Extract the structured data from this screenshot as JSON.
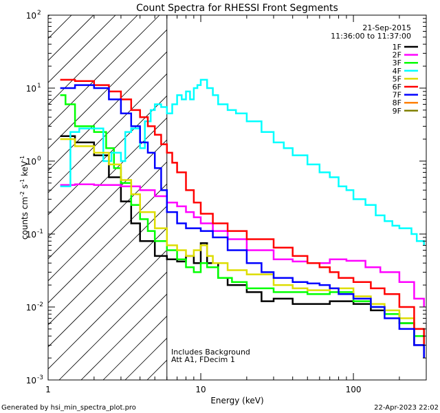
{
  "chart_data": {
    "type": "line",
    "title": "Count Spectra for RHESSI Front Segments",
    "xlabel": "Energy (keV)",
    "ylabel": "counts cm",
    "ylabel_sup1": "-2",
    "ylabel_mid": " s",
    "ylabel_sup2": "-1",
    "ylabel_mid2": " keV",
    "ylabel_sup3": "-1",
    "x_scale": "log",
    "y_scale": "log",
    "xlim": [
      1,
      300
    ],
    "ylim": [
      0.001,
      100
    ],
    "x_major_ticks": [
      1,
      10,
      100
    ],
    "x_tick_labels": [
      "1",
      "10",
      "100"
    ],
    "y_major_ticks": [
      0.001,
      0.01,
      0.1,
      1,
      10,
      100
    ],
    "y_tick_bases": [
      "10",
      "10",
      "10",
      "10",
      "10",
      "10"
    ],
    "y_tick_exps": [
      "-3",
      "-2",
      "-1",
      "0",
      "1",
      "2"
    ],
    "shaded_region_xmax": 6,
    "date": "21-Sep-2015",
    "time_range": "11:36:00 to 11:37:00",
    "notes": [
      "Includes Background",
      "Att A1, FDecim 1"
    ],
    "footer_left": "Generated by hsi_min_spectra_plot.pro",
    "footer_right": "22-Apr-2023 22:02",
    "series": [
      {
        "name": "1F",
        "color": "#000000",
        "visible": true,
        "points": [
          [
            1.2,
            2.2
          ],
          [
            1.5,
            1.8
          ],
          [
            2,
            1.2
          ],
          [
            2.5,
            0.6
          ],
          [
            3,
            0.28
          ],
          [
            3.5,
            0.14
          ],
          [
            4,
            0.08
          ],
          [
            5,
            0.05
          ],
          [
            6,
            0.045
          ],
          [
            7,
            0.042
          ],
          [
            8,
            0.05
          ],
          [
            9,
            0.04
          ],
          [
            10,
            0.075
          ],
          [
            11,
            0.04
          ],
          [
            13,
            0.025
          ],
          [
            15,
            0.02
          ],
          [
            20,
            0.016
          ],
          [
            25,
            0.012
          ],
          [
            30,
            0.013
          ],
          [
            40,
            0.011
          ],
          [
            50,
            0.011
          ],
          [
            70,
            0.012
          ],
          [
            100,
            0.011
          ],
          [
            130,
            0.009
          ],
          [
            160,
            0.008
          ],
          [
            200,
            0.006
          ],
          [
            250,
            0.003
          ],
          [
            290,
            0.002
          ]
        ]
      },
      {
        "name": "2F",
        "color": "#ff00ff",
        "visible": true,
        "points": [
          [
            1.2,
            0.47
          ],
          [
            1.5,
            0.48
          ],
          [
            2,
            0.47
          ],
          [
            3,
            0.45
          ],
          [
            4,
            0.4
          ],
          [
            5,
            0.33
          ],
          [
            6,
            0.27
          ],
          [
            7,
            0.24
          ],
          [
            8,
            0.2
          ],
          [
            9,
            0.17
          ],
          [
            10,
            0.14
          ],
          [
            12,
            0.11
          ],
          [
            15,
            0.085
          ],
          [
            20,
            0.06
          ],
          [
            30,
            0.045
          ],
          [
            40,
            0.042
          ],
          [
            50,
            0.04
          ],
          [
            70,
            0.045
          ],
          [
            90,
            0.043
          ],
          [
            120,
            0.035
          ],
          [
            150,
            0.03
          ],
          [
            200,
            0.022
          ],
          [
            250,
            0.013
          ],
          [
            290,
            0.01
          ]
        ]
      },
      {
        "name": "3F",
        "color": "#00ff00",
        "visible": true,
        "points": [
          [
            1.2,
            8
          ],
          [
            1.3,
            6
          ],
          [
            1.5,
            3
          ],
          [
            2,
            2.5
          ],
          [
            2.4,
            1.5
          ],
          [
            2.7,
            0.8
          ],
          [
            3,
            0.5
          ],
          [
            3.5,
            0.25
          ],
          [
            4,
            0.16
          ],
          [
            4.5,
            0.11
          ],
          [
            5,
            0.08
          ],
          [
            6,
            0.06
          ],
          [
            7,
            0.045
          ],
          [
            8,
            0.035
          ],
          [
            9,
            0.03
          ],
          [
            10,
            0.04
          ],
          [
            11,
            0.035
          ],
          [
            13,
            0.025
          ],
          [
            16,
            0.022
          ],
          [
            20,
            0.018
          ],
          [
            30,
            0.016
          ],
          [
            40,
            0.016
          ],
          [
            50,
            0.015
          ],
          [
            70,
            0.016
          ],
          [
            100,
            0.012
          ],
          [
            130,
            0.01
          ],
          [
            160,
            0.008
          ],
          [
            200,
            0.006
          ],
          [
            250,
            0.004
          ],
          [
            290,
            0.003
          ]
        ]
      },
      {
        "name": "4F",
        "color": "#00ffff",
        "visible": true,
        "points": [
          [
            1.2,
            0.45
          ],
          [
            1.4,
            2.5
          ],
          [
            1.6,
            2.8
          ],
          [
            2,
            2.8
          ],
          [
            2.3,
            1
          ],
          [
            2.6,
            1.3
          ],
          [
            3,
            1
          ],
          [
            3.2,
            2.5
          ],
          [
            3.5,
            2.8
          ],
          [
            4,
            1.5
          ],
          [
            4.3,
            3.5
          ],
          [
            4.7,
            5
          ],
          [
            5,
            6
          ],
          [
            5.5,
            5.5
          ],
          [
            6,
            4.5
          ],
          [
            6.5,
            6
          ],
          [
            7,
            8
          ],
          [
            7.5,
            7
          ],
          [
            8,
            9
          ],
          [
            8.5,
            7
          ],
          [
            9,
            10
          ],
          [
            9.5,
            11
          ],
          [
            10,
            13
          ],
          [
            11,
            10
          ],
          [
            12,
            8
          ],
          [
            13,
            6
          ],
          [
            15,
            5
          ],
          [
            17,
            4.5
          ],
          [
            20,
            3.5
          ],
          [
            25,
            2.5
          ],
          [
            30,
            1.8
          ],
          [
            35,
            1.5
          ],
          [
            40,
            1.2
          ],
          [
            50,
            0.9
          ],
          [
            60,
            0.7
          ],
          [
            70,
            0.6
          ],
          [
            80,
            0.45
          ],
          [
            90,
            0.4
          ],
          [
            100,
            0.3
          ],
          [
            120,
            0.25
          ],
          [
            140,
            0.18
          ],
          [
            160,
            0.15
          ],
          [
            180,
            0.13
          ],
          [
            200,
            0.12
          ],
          [
            240,
            0.1
          ],
          [
            260,
            0.08
          ],
          [
            290,
            0.07
          ]
        ]
      },
      {
        "name": "5F",
        "color": "#dddd00",
        "visible": true,
        "points": [
          [
            1.2,
            2
          ],
          [
            1.5,
            1.6
          ],
          [
            2,
            1.3
          ],
          [
            2.5,
            0.9
          ],
          [
            3,
            0.55
          ],
          [
            3.5,
            0.35
          ],
          [
            4,
            0.2
          ],
          [
            5,
            0.12
          ],
          [
            6,
            0.07
          ],
          [
            7,
            0.06
          ],
          [
            8,
            0.05
          ],
          [
            9,
            0.06
          ],
          [
            10,
            0.07
          ],
          [
            11,
            0.05
          ],
          [
            12,
            0.04
          ],
          [
            15,
            0.032
          ],
          [
            20,
            0.028
          ],
          [
            30,
            0.02
          ],
          [
            40,
            0.018
          ],
          [
            50,
            0.017
          ],
          [
            70,
            0.018
          ],
          [
            100,
            0.014
          ],
          [
            130,
            0.011
          ],
          [
            160,
            0.009
          ],
          [
            200,
            0.007
          ],
          [
            250,
            0.005
          ],
          [
            290,
            0.004
          ]
        ]
      },
      {
        "name": "6F",
        "color": "#ff0000",
        "visible": true,
        "points": [
          [
            1.2,
            13
          ],
          [
            1.5,
            12.5
          ],
          [
            2,
            11
          ],
          [
            2.5,
            9
          ],
          [
            3,
            7
          ],
          [
            3.5,
            5
          ],
          [
            4,
            4
          ],
          [
            4.5,
            3
          ],
          [
            5,
            2.3
          ],
          [
            5.5,
            1.7
          ],
          [
            6,
            1.3
          ],
          [
            6.5,
            0.95
          ],
          [
            7,
            0.7
          ],
          [
            8,
            0.4
          ],
          [
            9,
            0.27
          ],
          [
            10,
            0.19
          ],
          [
            12,
            0.14
          ],
          [
            15,
            0.11
          ],
          [
            20,
            0.085
          ],
          [
            30,
            0.065
          ],
          [
            40,
            0.05
          ],
          [
            50,
            0.04
          ],
          [
            60,
            0.035
          ],
          [
            70,
            0.03
          ],
          [
            80,
            0.025
          ],
          [
            100,
            0.022
          ],
          [
            130,
            0.018
          ],
          [
            160,
            0.015
          ],
          [
            200,
            0.01
          ],
          [
            250,
            0.005
          ],
          [
            290,
            0.003
          ]
        ]
      },
      {
        "name": "7F",
        "color": "#0000ff",
        "visible": true,
        "points": [
          [
            1.2,
            10
          ],
          [
            1.5,
            11
          ],
          [
            2,
            10
          ],
          [
            2.5,
            7
          ],
          [
            3,
            4.5
          ],
          [
            3.5,
            3
          ],
          [
            4,
            1.8
          ],
          [
            4.5,
            1.3
          ],
          [
            5,
            0.8
          ],
          [
            5.5,
            0.4
          ],
          [
            6,
            0.2
          ],
          [
            7,
            0.14
          ],
          [
            8,
            0.12
          ],
          [
            10,
            0.11
          ],
          [
            12,
            0.09
          ],
          [
            15,
            0.06
          ],
          [
            20,
            0.04
          ],
          [
            25,
            0.03
          ],
          [
            30,
            0.025
          ],
          [
            40,
            0.022
          ],
          [
            50,
            0.021
          ],
          [
            60,
            0.02
          ],
          [
            70,
            0.018
          ],
          [
            80,
            0.015
          ],
          [
            100,
            0.013
          ],
          [
            130,
            0.01
          ],
          [
            160,
            0.007
          ],
          [
            200,
            0.005
          ],
          [
            250,
            0.003
          ],
          [
            290,
            0.002
          ]
        ]
      },
      {
        "name": "8F",
        "color": "#ff8000",
        "visible": false,
        "points": []
      },
      {
        "name": "9F",
        "color": "#808000",
        "visible": false,
        "points": []
      }
    ]
  }
}
